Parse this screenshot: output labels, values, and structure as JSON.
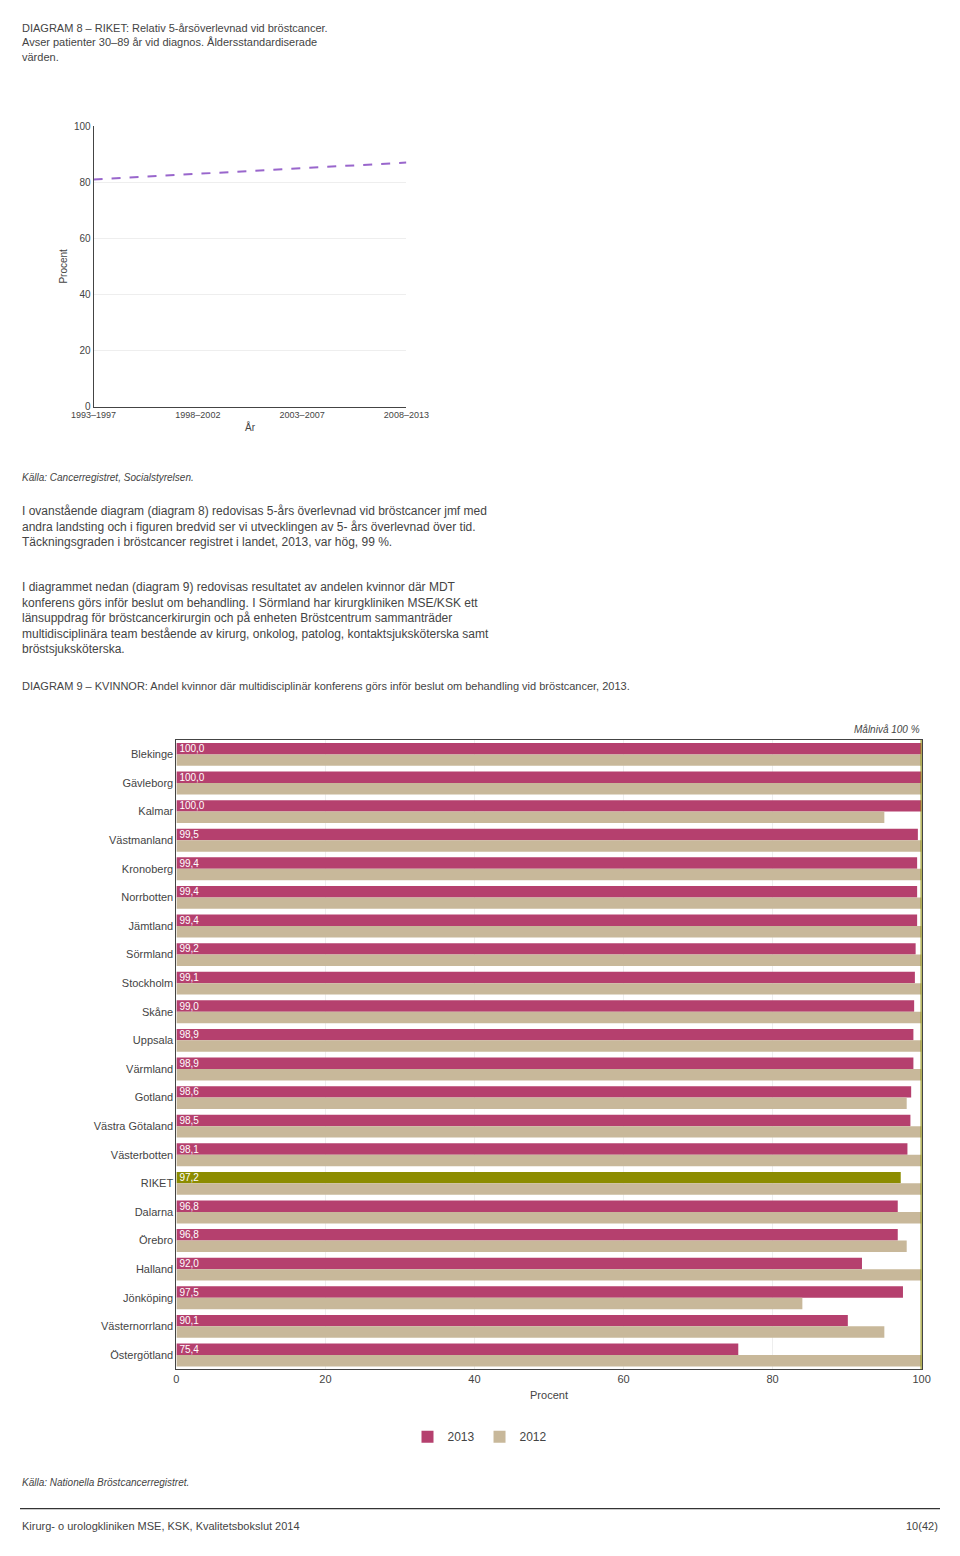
{
  "chart_data": [
    {
      "type": "line",
      "title": "DIAGRAM 8 – RIKET: Relativ 5-årsöverlevnad vid bröstcancer.\nAvser patienter 30–89 år vid diagnos. Åldersstandardiserade\nvärden.",
      "x_label": "År",
      "y_label": "Procent",
      "categories": [
        "1993–1997",
        "1998–2002",
        "2003–2007",
        "2008–2013"
      ],
      "series": [
        {
          "name": "Relativ 5-årsöverlevnad",
          "color": "#9966cc",
          "line_style": "dashed",
          "values": [
            81,
            83,
            85,
            87
          ]
        }
      ],
      "ylim": [
        0,
        100
      ],
      "yticks": [
        0,
        20,
        40,
        60,
        80,
        100
      ],
      "grid": true,
      "annotations": [
        "Källa: Cancerregistret, Socialstyrelsen.",
        "I ovanstående diagram (diagram 8) redovisas 5-års överlevnad vid bröstcancer jmf med\nandra landsting och i figuren bredvid ser vi utvecklingen av 5- års överlevnad över tid.\nTäckningsgraden i bröstcancer registret i landet, 2013, var hög, 99 %.",
        "I diagrammet nedan (diagram 9) redovisas resultatet av andelen kvinnor där MDT\nkonferens görs inför beslut om behandling. I Sörmland har kirurgkliniken MSE/KSK ett\nlänsuppdrag för bröstcancerkirurgin och på enheten Bröstcentrum sammanträder\nmultidisciplinära team bestående av kirurg, onkolog, patolog, kontaktsjuksköterska samt\nbröstsjuksköterska."
      ]
    },
    {
      "type": "bar",
      "orientation": "horizontal",
      "title": "DIAGRAM 9 – KVINNOR: Andel kvinnor där multidisciplinär konferens görs inför beslut om behandling vid bröstcancer, 2013.",
      "x_label": "Procent",
      "categories": [
        "Blekinge",
        "Gävleborg",
        "Kalmar",
        "Västmanland",
        "Kronoberg",
        "Norrbotten",
        "Jämtland",
        "Sörmland",
        "Stockholm",
        "Skåne",
        "Uppsala",
        "Värmland",
        "Gotland",
        "Västra Götaland",
        "Västerbotten",
        "RIKET",
        "Dalarna",
        "Örebro",
        "Halland",
        "Jönköping",
        "Västernorrland",
        "Östergötland"
      ],
      "series": [
        {
          "name": "2013",
          "color": "#b5406e",
          "colors": [
            "#b5406e",
            "#b5406e",
            "#b5406e",
            "#b5406e",
            "#b5406e",
            "#b5406e",
            "#b5406e",
            "#b5406e",
            "#b5406e",
            "#b5406e",
            "#b5406e",
            "#b5406e",
            "#b5406e",
            "#b5406e",
            "#b5406e",
            "#8c8c00",
            "#b5406e",
            "#b5406e",
            "#b5406e",
            "#b5406e",
            "#b5406e",
            "#b5406e"
          ],
          "values": [
            100.0,
            100.0,
            100.0,
            99.5,
            99.4,
            99.4,
            99.4,
            99.2,
            99.1,
            99.0,
            98.9,
            98.9,
            98.6,
            98.5,
            98.1,
            97.2,
            96.8,
            96.8,
            92.0,
            97.5,
            90.1,
            75.4
          ],
          "data_labels": true,
          "value_labels": [
            "100,0",
            "100,0",
            "100,0",
            "99,5",
            "99,4",
            "99,4",
            "99,4",
            "99,2",
            "99,1",
            "99,0",
            "98,9",
            "98,9",
            "98,6",
            "98,5",
            "98,1",
            "97,2",
            "96,8",
            "96,8",
            "92,0",
            "97,5",
            "90,1",
            "75,4"
          ]
        },
        {
          "name": "2012",
          "color": "#c8b89a",
          "values": [
            100.0,
            100.0,
            95.0,
            100.0,
            100.0,
            100.0,
            100.0,
            100.0,
            100.0,
            100.0,
            100.0,
            100.0,
            98.0,
            100.0,
            100.0,
            100.0,
            100.0,
            98.0,
            100.0,
            84.0,
            95.0,
            100.0
          ]
        }
      ],
      "xlim": [
        0,
        100
      ],
      "xticks": [
        0,
        20,
        40,
        60,
        80,
        100
      ],
      "grid": true,
      "legend": "bottom",
      "target": 100,
      "target_color": "#8c8c00",
      "target_label": "Målnivå 100 %",
      "annotations": [
        "Källa: Nationella Bröstcancerregistret.",
        "Kirurg- o urologkliniken MSE, KSK, Kvalitetsbokslut 2014",
        "10(42)"
      ]
    }
  ]
}
